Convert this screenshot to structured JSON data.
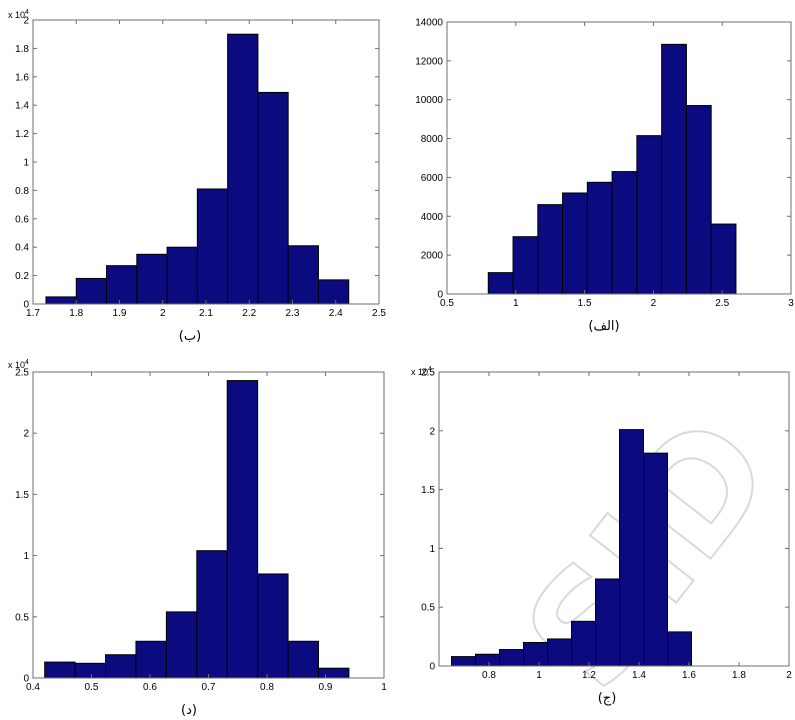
{
  "colors": {
    "bar_fill": "#0b0b7f",
    "bar_edge": "#000000",
    "axis": "#6f6f6f",
    "background": "#ffffff",
    "watermark": "#d9d9d9"
  },
  "watermark": "SID",
  "chart_data": [
    {
      "id": "alef",
      "type": "bar",
      "caption": "(الف)",
      "bin_edges": [
        0.8,
        0.98,
        1.16,
        1.34,
        1.52,
        1.7,
        1.88,
        2.06,
        2.24,
        2.42,
        2.6
      ],
      "values": [
        1100,
        2950,
        4600,
        5200,
        5750,
        6300,
        8150,
        12850,
        9700,
        3600
      ],
      "xlim": [
        0.5,
        3
      ],
      "ylim": [
        0,
        14000
      ],
      "xticks": [
        0.5,
        1,
        1.5,
        2,
        2.5,
        3
      ],
      "xtick_labels": [
        "0.5",
        "1",
        "1.5",
        "2",
        "2.5",
        "3"
      ],
      "yticks": [
        0,
        2000,
        4000,
        6000,
        8000,
        10000,
        12000,
        14000
      ],
      "ytick_labels": [
        "0",
        "2000",
        "4000",
        "6000",
        "8000",
        "10000",
        "12000",
        "14000"
      ],
      "y_multiplier": "",
      "y_multiplier_exp": "",
      "xlabel": "",
      "ylabel": "",
      "grid": false
    },
    {
      "id": "be",
      "type": "bar",
      "caption": "(ب)",
      "bin_edges": [
        1.73,
        1.8,
        1.87,
        1.94,
        2.01,
        2.08,
        2.15,
        2.22,
        2.29,
        2.36,
        2.43
      ],
      "values": [
        0.05,
        0.18,
        0.27,
        0.35,
        0.4,
        0.81,
        1.9,
        1.49,
        0.41,
        0.17
      ],
      "xlim": [
        1.7,
        2.5
      ],
      "ylim": [
        0,
        2
      ],
      "xticks": [
        1.7,
        1.8,
        1.9,
        2,
        2.1,
        2.2,
        2.3,
        2.4,
        2.5
      ],
      "xtick_labels": [
        "1.7",
        "1.8",
        "1.9",
        "2",
        "2.1",
        "2.2",
        "2.3",
        "2.4",
        "2.5"
      ],
      "yticks": [
        0,
        0.2,
        0.4,
        0.6,
        0.8,
        1,
        1.2,
        1.4,
        1.6,
        1.8,
        2
      ],
      "ytick_labels": [
        "0",
        "0.2",
        "0.4",
        "0.6",
        "0.8",
        "1",
        "1.2",
        "1.4",
        "1.6",
        "1.8",
        "2"
      ],
      "y_multiplier": "x 10",
      "y_multiplier_exp": "4",
      "xlabel": "",
      "ylabel": "",
      "grid": false
    },
    {
      "id": "jim",
      "type": "bar",
      "caption": "(ج)",
      "bin_edges": [
        0.65,
        0.746,
        0.842,
        0.938,
        1.034,
        1.13,
        1.226,
        1.322,
        1.418,
        1.514,
        1.61
      ],
      "values": [
        0.08,
        0.1,
        0.14,
        0.2,
        0.23,
        0.38,
        0.74,
        2.01,
        1.81,
        0.29
      ],
      "xlim": [
        0.6,
        2
      ],
      "ylim": [
        0,
        2.5
      ],
      "xticks": [
        0.8,
        1,
        1.2,
        1.4,
        1.6,
        1.8,
        2
      ],
      "xtick_labels": [
        "0.8",
        "1",
        "1.2",
        "1.4",
        "1.6",
        "1.8",
        "2"
      ],
      "yticks": [
        0,
        0.5,
        1,
        1.5,
        2,
        2.5
      ],
      "ytick_labels": [
        "0",
        "0.5",
        "1",
        "1.5",
        "2",
        "2.5"
      ],
      "y_multiplier": "x 10",
      "y_multiplier_exp": "4",
      "xlabel": "",
      "ylabel": "",
      "grid": false
    },
    {
      "id": "dal",
      "type": "bar",
      "caption": "(د)",
      "bin_edges": [
        0.42,
        0.472,
        0.524,
        0.576,
        0.628,
        0.68,
        0.732,
        0.784,
        0.836,
        0.888,
        0.94
      ],
      "values": [
        0.13,
        0.12,
        0.19,
        0.3,
        0.54,
        1.04,
        2.43,
        0.85,
        0.3,
        0.08
      ],
      "xlim": [
        0.4,
        1
      ],
      "ylim": [
        0,
        2.5
      ],
      "xticks": [
        0.4,
        0.5,
        0.6,
        0.7,
        0.8,
        0.9,
        1
      ],
      "xtick_labels": [
        "0.4",
        "0.5",
        "0.6",
        "0.7",
        "0.8",
        "0.9",
        "1"
      ],
      "yticks": [
        0,
        0.5,
        1,
        1.5,
        2,
        2.5
      ],
      "ytick_labels": [
        "0",
        "0.5",
        "1",
        "1.5",
        "2",
        "2.5"
      ],
      "y_multiplier": "x 10",
      "y_multiplier_exp": "4",
      "xlabel": "",
      "ylabel": "",
      "grid": false
    }
  ]
}
